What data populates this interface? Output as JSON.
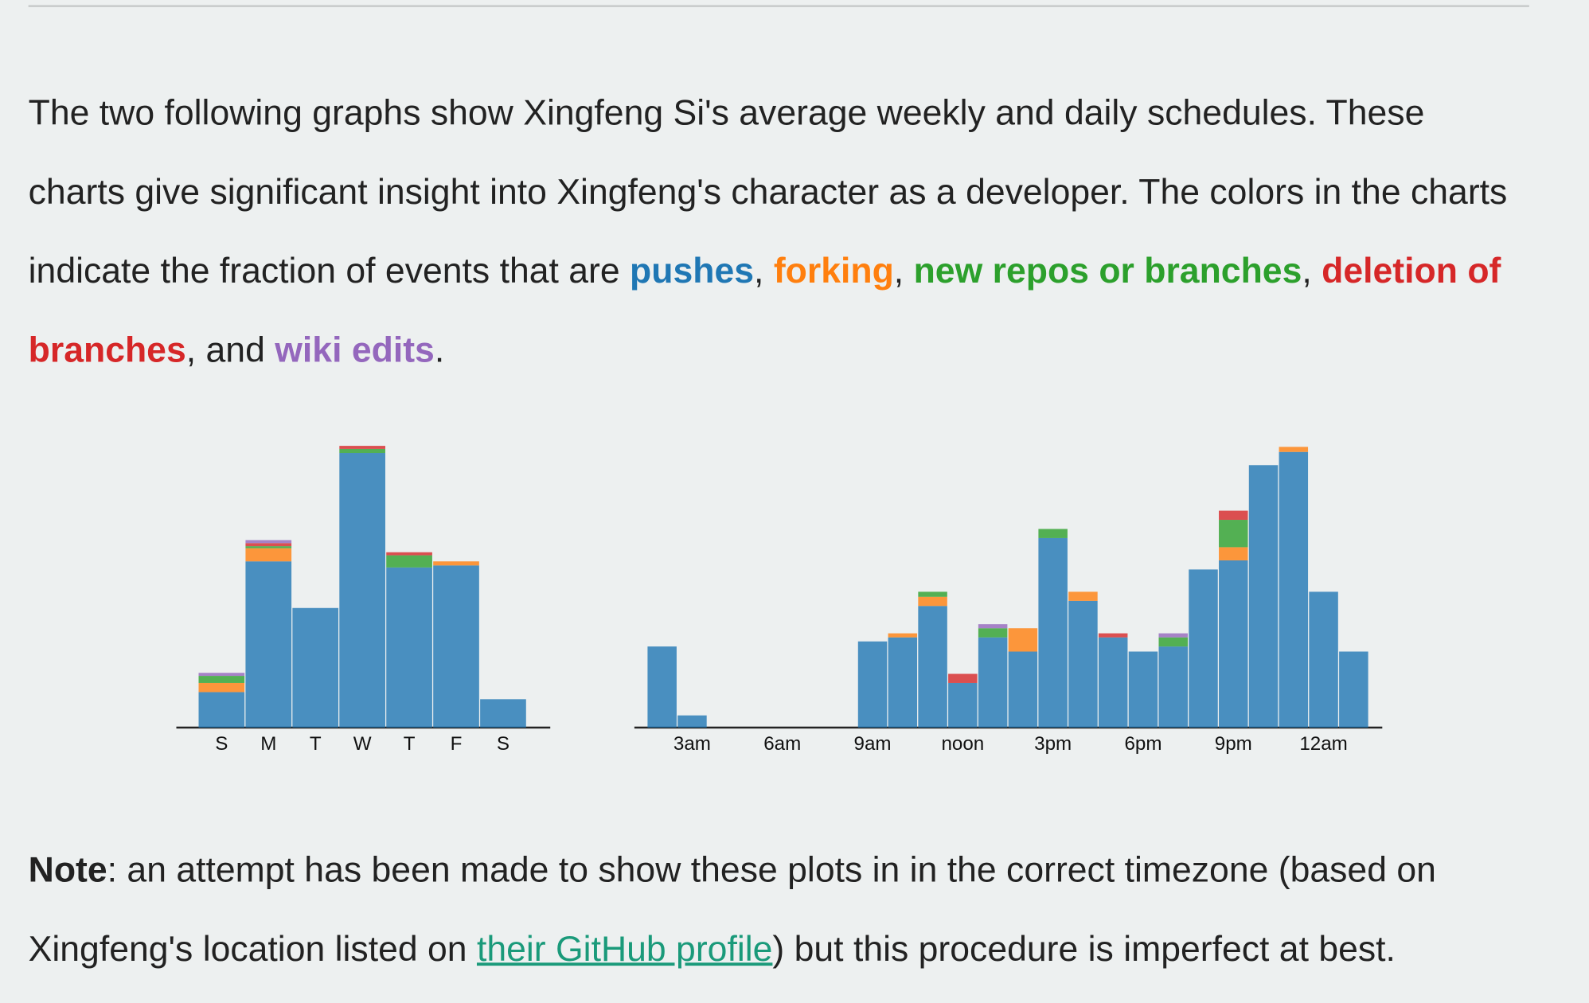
{
  "intro": {
    "text": "The two following graphs show Xingfeng Si's average weekly and daily schedules. These charts give significant insight into Xingfeng's character as a developer. The colors in the charts indicate the fraction of events that are ",
    "and": "and",
    "comma": ",",
    "period": "."
  },
  "chart_data": [
    {
      "type": "bar",
      "stacked": true,
      "categories": [
        "S",
        "M",
        "T",
        "W",
        "T",
        "F",
        "S"
      ],
      "ylim": [
        0,
        278
      ],
      "series": [
        {
          "name": "pushes",
          "color": "#1f77b4",
          "values": [
            35,
            164,
            118,
            271,
            158,
            160,
            28
          ]
        },
        {
          "name": "forking",
          "color": "#ff7f0e",
          "values": [
            9,
            13,
            0,
            0,
            0,
            4,
            0
          ]
        },
        {
          "name": "new repos or branches",
          "color": "#2ca02c",
          "values": [
            7,
            2,
            0,
            4,
            12,
            0,
            0
          ]
        },
        {
          "name": "deletion of branches",
          "color": "#d62728",
          "values": [
            0,
            3,
            0,
            3,
            3,
            0,
            0
          ]
        },
        {
          "name": "wiki edits",
          "color": "#9467bd",
          "values": [
            3,
            3,
            0,
            0,
            0,
            0,
            0
          ]
        }
      ]
    },
    {
      "type": "bar",
      "stacked": true,
      "categories": [
        null,
        "3am",
        null,
        null,
        "6am",
        null,
        null,
        "9am",
        null,
        null,
        "noon",
        null,
        null,
        "3pm",
        null,
        null,
        "6pm",
        null,
        null,
        "9pm",
        null,
        null,
        "12am",
        null
      ],
      "ylim": [
        0,
        278
      ],
      "series": [
        {
          "color": "#1f77b4",
          "values": [
            80,
            12,
            0,
            0,
            0,
            0,
            0,
            85,
            89,
            120,
            44,
            89,
            75,
            187,
            125,
            89,
            75,
            80,
            156,
            165,
            259,
            272,
            134,
            75
          ]
        },
        {
          "color": "#ff7f0e",
          "values": [
            0,
            0,
            0,
            0,
            0,
            0,
            0,
            0,
            4,
            9,
            0,
            0,
            23,
            0,
            9,
            0,
            0,
            0,
            0,
            13,
            0,
            5,
            0,
            0
          ]
        },
        {
          "color": "#2ca02c",
          "values": [
            0,
            0,
            0,
            0,
            0,
            0,
            0,
            0,
            0,
            5,
            0,
            9,
            0,
            9,
            0,
            0,
            0,
            9,
            0,
            27,
            0,
            0,
            0,
            0
          ]
        },
        {
          "color": "#d62728",
          "values": [
            0,
            0,
            0,
            0,
            0,
            0,
            0,
            0,
            0,
            0,
            9,
            0,
            0,
            0,
            0,
            4,
            0,
            0,
            0,
            9,
            0,
            0,
            0,
            0
          ]
        },
        {
          "color": "#9467bd",
          "values": [
            0,
            0,
            0,
            0,
            0,
            0,
            0,
            0,
            0,
            0,
            0,
            4,
            0,
            0,
            0,
            0,
            0,
            4,
            0,
            0,
            0,
            0,
            0,
            0
          ]
        }
      ]
    }
  ],
  "note": {
    "label": "Note",
    "text": ": an attempt has been made to show these plots in in the correct timezone (based on Xingfeng's location listed on ",
    "link": "their GitHub profile",
    "tail": ") but this procedure is imperfect at best."
  }
}
